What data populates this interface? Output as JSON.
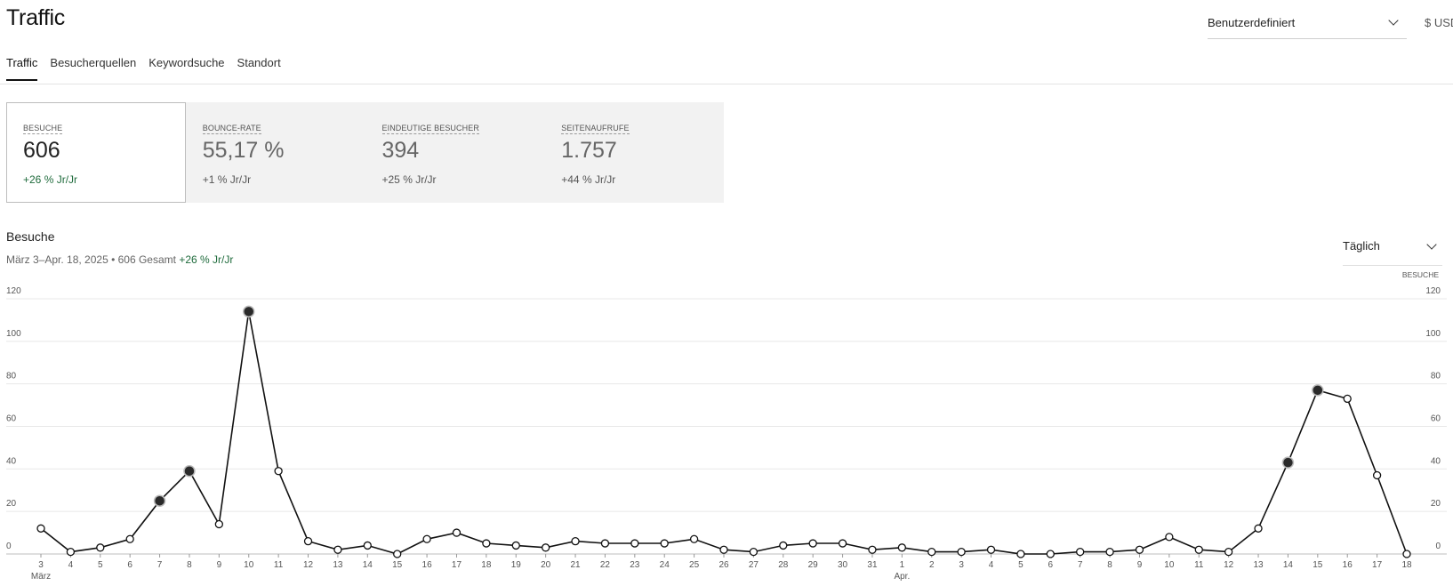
{
  "header": {
    "title": "Traffic",
    "range_select_value": "Benutzerdefiniert",
    "currency_label": "$ USD"
  },
  "tabs": [
    {
      "label": "Traffic",
      "active": true
    },
    {
      "label": "Besucherquellen",
      "active": false
    },
    {
      "label": "Keywordsuche",
      "active": false
    },
    {
      "label": "Standort",
      "active": false
    }
  ],
  "metrics": [
    {
      "label": "BESUCHE",
      "value": "606",
      "change": "+26 % Jr/Jr",
      "active": true
    },
    {
      "label": "BOUNCE-RATE",
      "value": "55,17 %",
      "change": "+1 % Jr/Jr",
      "active": false
    },
    {
      "label": "EINDEUTIGE BESUCHER",
      "value": "394",
      "change": "+25 % Jr/Jr",
      "active": false
    },
    {
      "label": "SEITENAUFRUFE",
      "value": "1.757",
      "change": "+44 % Jr/Jr",
      "active": false
    }
  ],
  "chart_section": {
    "title": "Besuche",
    "subtitle_prefix": "März 3–Apr. 18, 2025 • 606 Gesamt",
    "subtitle_change": "+26 % Jr/Jr",
    "interval_select_value": "Täglich"
  },
  "chart_data": {
    "type": "line",
    "series_label": "BESUCHE",
    "ylim": [
      0,
      120
    ],
    "y_ticks": [
      0,
      20,
      40,
      60,
      80,
      100,
      120
    ],
    "grid": true,
    "x": [
      "3",
      "4",
      "5",
      "6",
      "7",
      "8",
      "9",
      "10",
      "11",
      "12",
      "13",
      "14",
      "15",
      "16",
      "17",
      "18",
      "19",
      "20",
      "21",
      "22",
      "23",
      "24",
      "25",
      "26",
      "27",
      "28",
      "29",
      "30",
      "31",
      "1",
      "2",
      "3",
      "4",
      "5",
      "6",
      "7",
      "8",
      "9",
      "10",
      "11",
      "12",
      "13",
      "14",
      "15",
      "16",
      "17",
      "18"
    ],
    "month_labels": [
      {
        "index": 0,
        "label": "März"
      },
      {
        "index": 29,
        "label": "Apr."
      }
    ],
    "values": [
      12,
      1,
      3,
      7,
      25,
      39,
      14,
      114,
      39,
      6,
      2,
      4,
      0,
      7,
      10,
      5,
      4,
      3,
      6,
      5,
      5,
      5,
      7,
      2,
      1,
      4,
      5,
      5,
      2,
      3,
      1,
      1,
      2,
      0,
      0,
      1,
      1,
      2,
      8,
      2,
      1,
      12,
      43,
      77,
      73,
      37,
      0
    ],
    "highlighted_indices": [
      4,
      5,
      7,
      42,
      43
    ]
  }
}
